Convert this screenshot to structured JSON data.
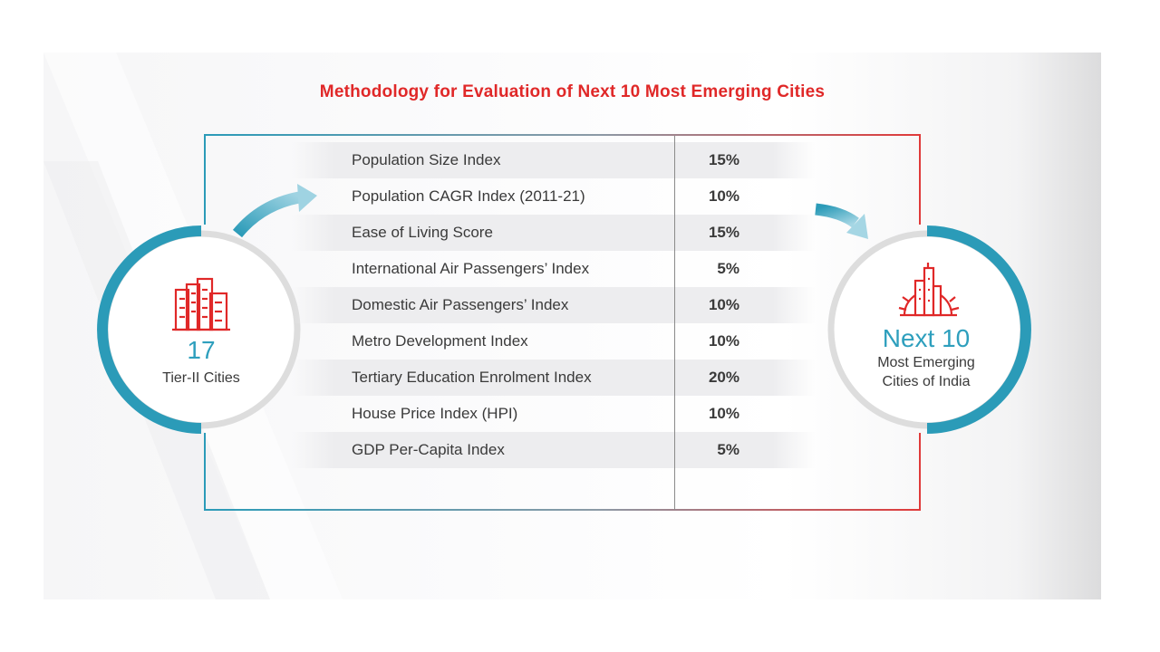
{
  "title": "Methodology for Evaluation of Next 10 Most Emerging Cities",
  "source": {
    "count": "17",
    "caption": "Tier-II Cities",
    "icon": "city-buildings-icon"
  },
  "result": {
    "heading": "Next 10",
    "caption_line1": "Most Emerging",
    "caption_line2": "Cities of India",
    "icon": "city-skyline-sun-icon"
  },
  "criteria": [
    {
      "label": "Population Size Index",
      "weight": "15%"
    },
    {
      "label": "Population CAGR Index (2011-21)",
      "weight": "10%"
    },
    {
      "label": "Ease of Living Score",
      "weight": "15%"
    },
    {
      "label": "International Air Passengers’ Index",
      "weight": "5%"
    },
    {
      "label": "Domestic Air Passengers’ Index",
      "weight": "10%"
    },
    {
      "label": "Metro Development Index",
      "weight": "10%"
    },
    {
      "label": "Tertiary Education Enrolment Index",
      "weight": "20%"
    },
    {
      "label": "House Price Index (HPI)",
      "weight": "10%"
    },
    {
      "label": "GDP Per-Capita Index",
      "weight": "5%"
    }
  ],
  "colors": {
    "accent_red": "#e02828",
    "accent_teal": "#2b9bb8",
    "ring_grey": "#dddddd",
    "text": "#3a3a3a"
  }
}
